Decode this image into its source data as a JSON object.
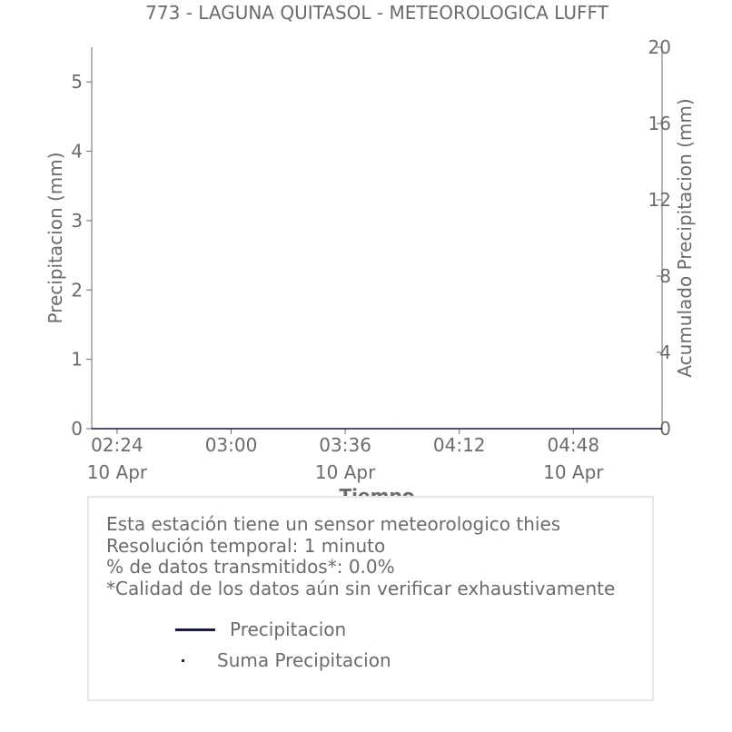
{
  "chart_data": {
    "type": "line",
    "title": "773 - LAGUNA QUITASOL - METEOROLOGICA LUFFT",
    "xlabel": "Tiempo",
    "ylabel": "Precipitacion (mm)",
    "y2label": "Acumulado Precipitacion (mm)",
    "x_ticks": [
      {
        "time": "02:24",
        "date": "10 Apr"
      },
      {
        "time": "03:00",
        "date": ""
      },
      {
        "time": "03:36",
        "date": "10 Apr"
      },
      {
        "time": "04:12",
        "date": ""
      },
      {
        "time": "04:48",
        "date": "10 Apr"
      }
    ],
    "xlim": [
      "02:16",
      "05:16"
    ],
    "ylim": [
      0,
      5.5
    ],
    "y_ticks": [
      "0",
      "1",
      "2",
      "3",
      "4",
      "5"
    ],
    "y2lim": [
      0,
      20
    ],
    "y2_ticks": [
      "0",
      "4",
      "8",
      "12",
      "16",
      "20"
    ],
    "grid": false,
    "series": [
      {
        "name": "Precipitacion",
        "axis": "left",
        "color": "#1c1c3c",
        "style": "line",
        "x": [
          "02:16",
          "05:16"
        ],
        "values": [
          0,
          0
        ]
      },
      {
        "name": "Suma Precipitacion",
        "axis": "right",
        "color": "#1c1c3c",
        "style": "dots",
        "x": [
          "02:16",
          "05:16"
        ],
        "values": [
          0,
          0
        ]
      }
    ]
  },
  "info": {
    "lines": [
      "Esta estación tiene un sensor meteorologico thies",
      "Resolución temporal: 1 minuto",
      "% de datos transmitidos*: 0.0%",
      "*Calidad de los datos aún sin verificar exhaustivamente"
    ]
  }
}
